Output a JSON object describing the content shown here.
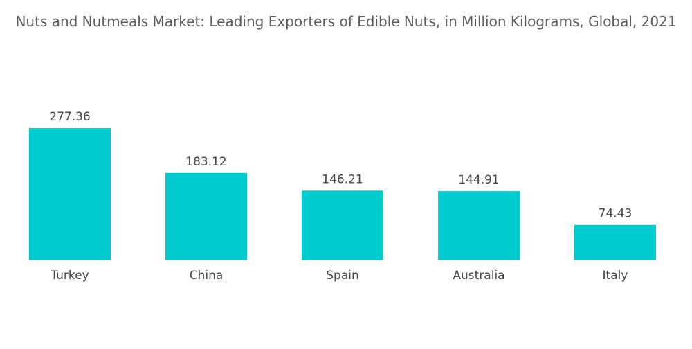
{
  "chart_data": {
    "type": "bar",
    "title": "Nuts and Nutmeals Market: Leading Exporters of Edible Nuts, in Million Kilograms, Global, 2021",
    "xlabel": "",
    "ylabel": "",
    "categories": [
      "Turkey",
      "China",
      "Spain",
      "Australia",
      "Italy"
    ],
    "values": [
      277.36,
      183.12,
      146.21,
      144.91,
      74.43
    ],
    "value_labels": [
      "277.36",
      "183.12",
      "146.21",
      "144.91",
      "74.43"
    ],
    "ylim": [
      0,
      277.36
    ],
    "grid": false,
    "legend": "none",
    "bar_color": "#00ccd0"
  }
}
